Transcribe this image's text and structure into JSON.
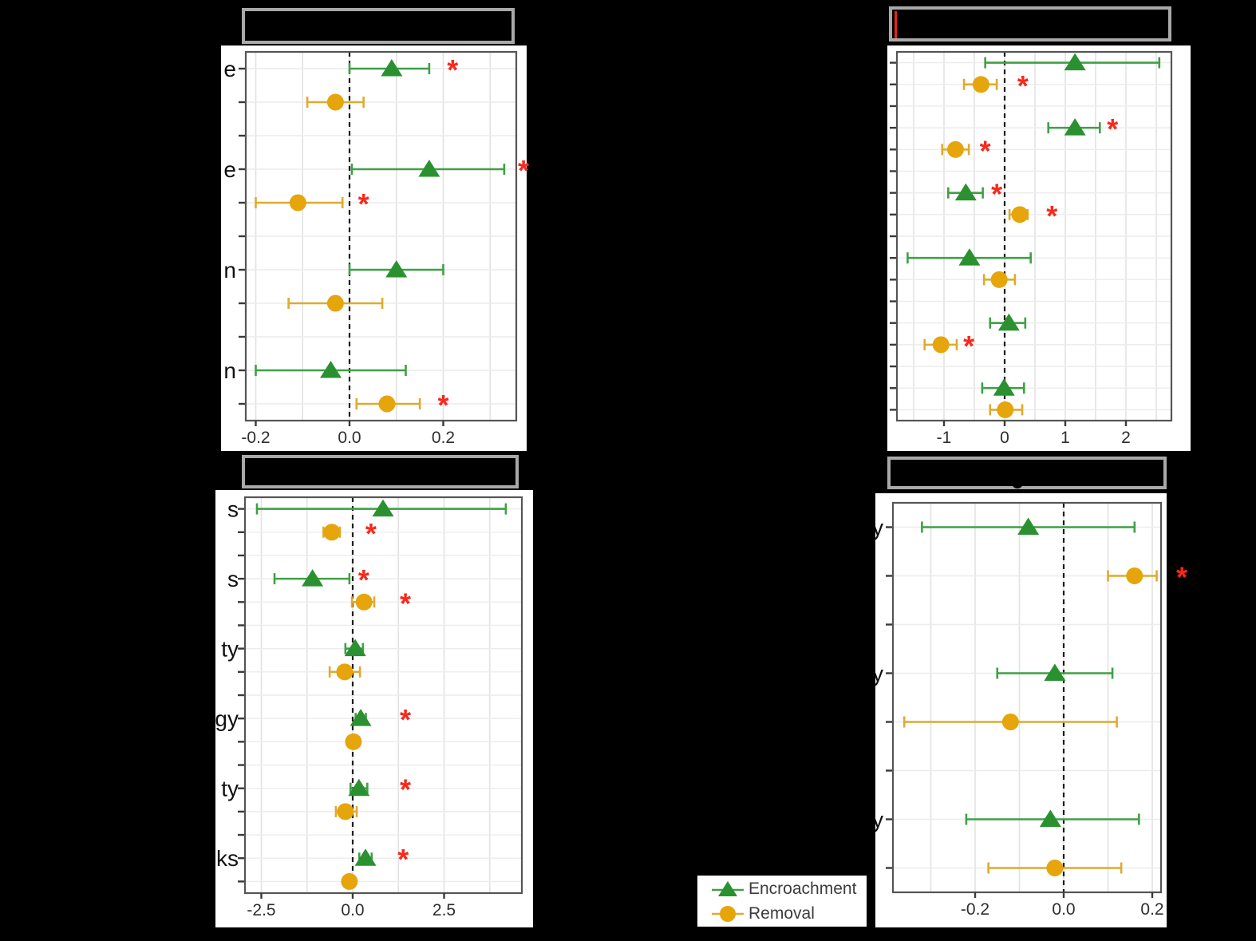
{
  "page": {
    "background": "#000000"
  },
  "colors": {
    "encroachment": "#2b9130",
    "encroachment_line": "#3fa045",
    "removal": "#e5a50b",
    "removal_line": "#dfaa2e",
    "significance_star": "#f8281c",
    "grid_major": "#e2e2e2",
    "grid_row": "#ececec",
    "panel_border": "#555555",
    "axis_text": "#2e2e2e",
    "zero_line": "#1b1b1b",
    "title_box_border": "#a9a9a9",
    "panel_background": "#ffffff"
  },
  "legend": {
    "items": [
      {
        "label": "Encroachment",
        "marker": "triangle",
        "color": "#2b9130"
      },
      {
        "label": "Removal",
        "marker": "circle",
        "color": "#e5a50b"
      }
    ]
  },
  "chart_data": [
    {
      "id": "top-left",
      "type": "scatter",
      "subtype": "forest-dot-whisker",
      "title": "",
      "xlabel": "",
      "x_axis": {
        "ticks": [
          {
            "v": -0.2,
            "label": "-0.2"
          },
          {
            "v": 0,
            "label": "0.0"
          },
          {
            "v": 0.2,
            "label": "0.2"
          }
        ],
        "grid": {
          "from": -0.2,
          "to": 0.3,
          "step": 0.1
        },
        "range": [
          -0.221,
          0.356
        ],
        "zero_dashed_line": true
      },
      "y_label_fragments_visible": [
        "e",
        "e",
        "n",
        "n"
      ],
      "rows": [
        {
          "series": "Encroachment",
          "label_fragment": "e",
          "value": 0.09,
          "ci": [
            0.0,
            0.17
          ],
          "sig_at": 0.22
        },
        {
          "series": "Removal",
          "value": -0.03,
          "ci": [
            -0.09,
            0.03
          ]
        },
        {
          "spacer": true
        },
        {
          "series": "Encroachment",
          "label_fragment": "e",
          "value": 0.17,
          "ci": [
            0.005,
            0.33
          ],
          "sig_at": 0.371
        },
        {
          "series": "Removal",
          "value": -0.11,
          "ci": [
            -0.2,
            -0.015
          ],
          "sig_at": 0.03
        },
        {
          "spacer": true
        },
        {
          "series": "Encroachment",
          "label_fragment": "n",
          "value": 0.1,
          "ci": [
            0.0,
            0.2
          ]
        },
        {
          "series": "Removal",
          "value": -0.03,
          "ci": [
            -0.13,
            0.07
          ]
        },
        {
          "spacer": true
        },
        {
          "series": "Encroachment",
          "label_fragment": "n",
          "value": -0.04,
          "ci": [
            -0.2,
            0.12
          ]
        },
        {
          "series": "Removal",
          "value": 0.08,
          "ci": [
            0.015,
            0.15
          ],
          "sig_at": 0.2
        }
      ]
    },
    {
      "id": "top-right",
      "type": "scatter",
      "subtype": "forest-dot-whisker",
      "title": "",
      "xlabel": "",
      "x_axis": {
        "ticks": [
          {
            "v": -1,
            "label": "-1"
          },
          {
            "v": 0,
            "label": "0"
          },
          {
            "v": 1,
            "label": "1"
          },
          {
            "v": 2,
            "label": "2"
          }
        ],
        "grid": {
          "from": -1.5,
          "to": 2.5,
          "step": 0.5
        },
        "range": [
          -1.78,
          2.75
        ],
        "zero_dashed_line": true
      },
      "y_label_fragments_visible": [],
      "rows": [
        {
          "series": "Encroachment",
          "value": 1.16,
          "ci": [
            -0.32,
            2.55
          ]
        },
        {
          "series": "Removal",
          "value": -0.39,
          "ci": [
            -0.67,
            -0.13
          ],
          "sig_at": 0.3
        },
        {
          "spacer": true
        },
        {
          "series": "Encroachment",
          "value": 1.16,
          "ci": [
            0.72,
            1.57
          ],
          "sig_at": 1.78
        },
        {
          "series": "Removal",
          "value": -0.81,
          "ci": [
            -1.03,
            -0.59
          ],
          "sig_at": -0.32
        },
        {
          "spacer": true
        },
        {
          "series": "Encroachment",
          "value": -0.64,
          "ci": [
            -0.93,
            -0.36
          ],
          "sig_at": -0.13
        },
        {
          "series": "Removal",
          "value": 0.25,
          "ci": [
            0.08,
            0.38
          ],
          "sig_at": 0.78
        },
        {
          "spacer": true
        },
        {
          "series": "Encroachment",
          "value": -0.58,
          "ci": [
            -1.6,
            0.43
          ]
        },
        {
          "series": "Removal",
          "value": -0.09,
          "ci": [
            -0.34,
            0.17
          ]
        },
        {
          "spacer": true
        },
        {
          "series": "Encroachment",
          "value": 0.07,
          "ci": [
            -0.24,
            0.34
          ]
        },
        {
          "series": "Removal",
          "value": -1.05,
          "ci": [
            -1.32,
            -0.79
          ],
          "sig_at": -0.59
        },
        {
          "spacer": true
        },
        {
          "series": "Encroachment",
          "value": -0.01,
          "ci": [
            -0.37,
            0.32
          ]
        },
        {
          "series": "Removal",
          "value": 0.01,
          "ci": [
            -0.24,
            0.29
          ]
        }
      ]
    },
    {
      "id": "bottom-left",
      "type": "scatter",
      "subtype": "forest-dot-whisker",
      "title": "",
      "xlabel": "",
      "x_axis": {
        "ticks": [
          {
            "v": -2.5,
            "label": "-2.5"
          },
          {
            "v": 0,
            "label": "0.0"
          },
          {
            "v": 2.5,
            "label": "2.5"
          }
        ],
        "grid": {
          "from": -2.5,
          "to": 3.75,
          "step": 1.25
        },
        "range": [
          -2.93,
          4.65
        ],
        "zero_dashed_line": true
      },
      "y_label_fragments_visible": [
        "s",
        "s",
        "ty",
        "gy",
        "ty",
        "ks"
      ],
      "rows": [
        {
          "series": "Encroachment",
          "label_fragment": "s",
          "value": 0.83,
          "ci": [
            -2.62,
            4.19
          ]
        },
        {
          "series": "Removal",
          "value": -0.57,
          "ci": [
            -0.8,
            -0.35
          ],
          "sig_at": 0.5
        },
        {
          "spacer": true
        },
        {
          "series": "Encroachment",
          "label_fragment": "s",
          "value": -1.1,
          "ci": [
            -2.14,
            -0.09
          ],
          "sig_at": 0.3
        },
        {
          "series": "Removal",
          "value": 0.31,
          "ci": [
            -0.02,
            0.59
          ],
          "sig_at": 1.44
        },
        {
          "spacer": true
        },
        {
          "series": "Encroachment",
          "label_fragment": "ty",
          "value": 0.07,
          "ci": [
            -0.2,
            0.28
          ]
        },
        {
          "series": "Removal",
          "value": -0.22,
          "ci": [
            -0.63,
            0.2
          ]
        },
        {
          "spacer": true
        },
        {
          "series": "Encroachment",
          "label_fragment": "gy",
          "value": 0.22,
          "ci": [
            0.08,
            0.36
          ],
          "sig_at": 1.44
        },
        {
          "series": "Removal",
          "value": 0.02,
          "ci": [
            -0.12,
            0.16
          ]
        },
        {
          "spacer": true
        },
        {
          "series": "Encroachment",
          "label_fragment": "ty",
          "value": 0.17,
          "ci": [
            -0.06,
            0.4
          ],
          "sig_at": 1.44
        },
        {
          "series": "Removal",
          "value": -0.2,
          "ci": [
            -0.46,
            0.11
          ]
        },
        {
          "spacer": true
        },
        {
          "series": "Encroachment",
          "label_fragment": "ks",
          "value": 0.35,
          "ci": [
            0.18,
            0.52
          ],
          "sig_at": 1.38
        },
        {
          "series": "Removal",
          "value": -0.09,
          "ci": [
            -0.22,
            0.05
          ]
        }
      ]
    },
    {
      "id": "bottom-right",
      "type": "scatter",
      "subtype": "forest-dot-whisker",
      "title": "",
      "xlabel": "",
      "x_axis": {
        "ticks": [
          {
            "v": -0.2,
            "label": "-0.2"
          },
          {
            "v": 0,
            "label": "0.0"
          },
          {
            "v": 0.2,
            "label": "0.2"
          }
        ],
        "grid": {
          "from": -0.3,
          "to": 0.2,
          "step": 0.1
        },
        "range": [
          -0.386,
          0.22
        ],
        "zero_dashed_line": true
      },
      "y_label_fragments_visible": [
        "y",
        "y",
        "y"
      ],
      "rows": [
        {
          "series": "Encroachment",
          "label_fragment": "y",
          "value": -0.08,
          "ci": [
            -0.32,
            0.16
          ]
        },
        {
          "series": "Removal",
          "value": 0.16,
          "ci": [
            0.1,
            0.21
          ],
          "sig_at": 0.267
        },
        {
          "spacer": true
        },
        {
          "series": "Encroachment",
          "label_fragment": "y",
          "value": -0.02,
          "ci": [
            -0.15,
            0.11
          ]
        },
        {
          "series": "Removal",
          "value": -0.12,
          "ci": [
            -0.36,
            0.12
          ]
        },
        {
          "spacer": true
        },
        {
          "series": "Encroachment",
          "label_fragment": "y",
          "value": -0.03,
          "ci": [
            -0.22,
            0.17
          ]
        },
        {
          "series": "Removal",
          "value": -0.02,
          "ci": [
            -0.17,
            0.13
          ]
        }
      ]
    }
  ]
}
